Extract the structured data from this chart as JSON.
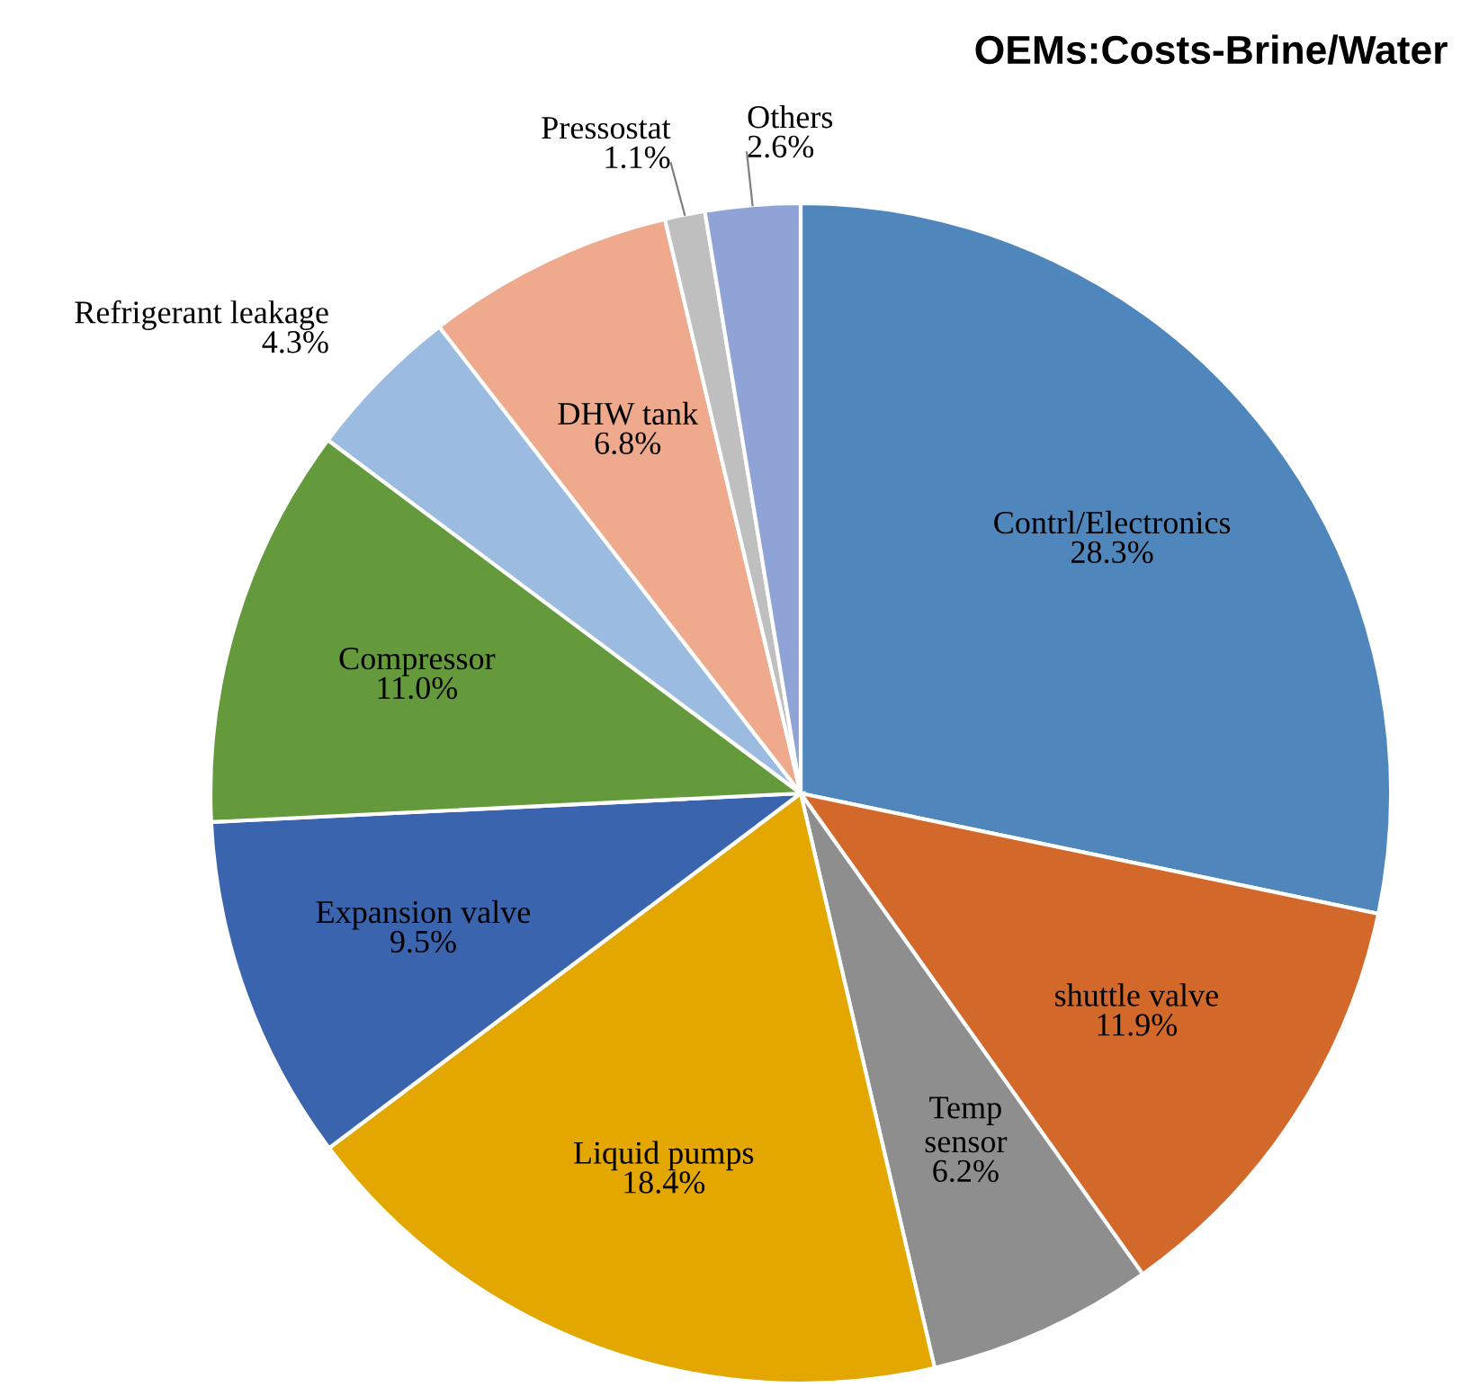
{
  "chart_data": {
    "type": "pie",
    "title": "OEMs:Costs-Brine/Water",
    "categories": [
      "Contrl/Electronics",
      "shuttle valve",
      "Temp\nsensor",
      "Liquid pumps",
      "Expansion valve",
      "Compressor",
      "Refrigerant leakage",
      "DHW tank",
      "Pressostat",
      "Others"
    ],
    "values": [
      28.3,
      11.9,
      6.2,
      18.4,
      9.5,
      11.0,
      4.3,
      6.8,
      1.1,
      2.6
    ],
    "colors": [
      "#4f87bd",
      "#d2692a",
      "#8e8e8e",
      "#e3a700",
      "#3a64ad",
      "#64993c",
      "#9bbbe0",
      "#efa98c",
      "#bfbfbf",
      "#8fa3d6"
    ],
    "value_labels": [
      "28.3%",
      "11.9%",
      "6.2%",
      "18.4%",
      "9.5%",
      "11.0%",
      "4.3%",
      "6.8%",
      "1.1%",
      "2.6%"
    ],
    "legend": false
  }
}
